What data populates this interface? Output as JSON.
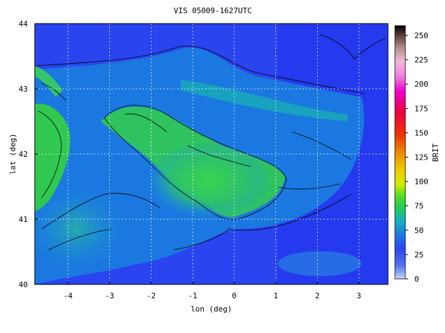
{
  "chart_data": {
    "type": "heatmap",
    "title": "VIS 05009-1627UTC",
    "xlabel": "lon (deg)",
    "ylabel": "lat (deg)",
    "xlim": [
      -4.8,
      3.7
    ],
    "ylim": [
      40,
      44
    ],
    "x_ticks": [
      "-4",
      "-3",
      "-2",
      "-1",
      "0",
      "1",
      "2",
      "3"
    ],
    "x_tick_values": [
      -4,
      -3,
      -2,
      -1,
      0,
      1,
      2,
      3
    ],
    "y_ticks": [
      "40",
      "41",
      "42",
      "43",
      "44"
    ],
    "y_tick_values": [
      40,
      41,
      42,
      43,
      44
    ],
    "grid": true,
    "colorbar": {
      "label": "BRIT",
      "range": [
        0,
        260
      ],
      "ticks": [
        "0",
        "25",
        "50",
        "75",
        "100",
        "125",
        "150",
        "175",
        "200",
        "225",
        "250"
      ],
      "tick_values": [
        0,
        25,
        50,
        75,
        100,
        125,
        150,
        175,
        200,
        225,
        250
      ]
    },
    "colors": {
      "ocean": "#2a44f0",
      "low": "#3358ec",
      "mid": "#1a9ad8",
      "high": "#33d933",
      "grid": "#ffffff",
      "contour": "#000000"
    }
  }
}
